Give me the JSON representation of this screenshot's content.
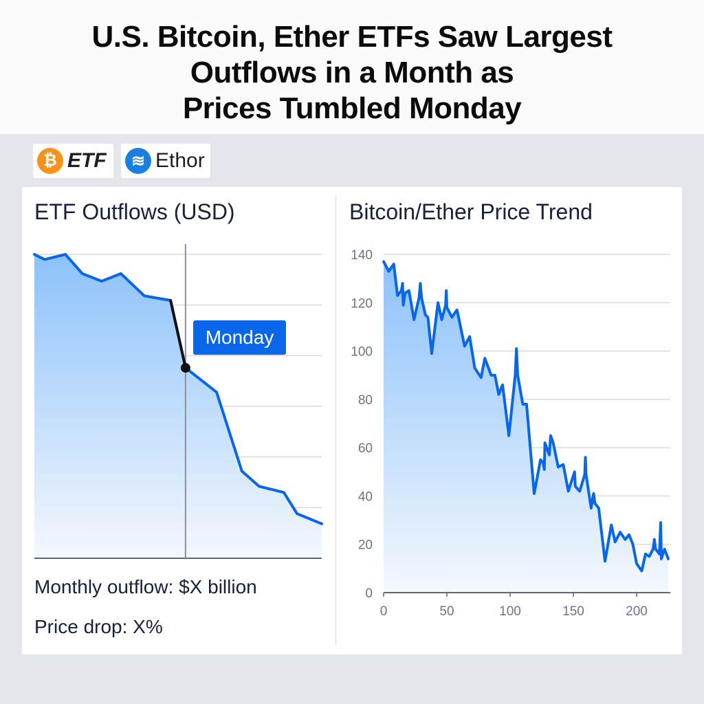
{
  "header": {
    "title_lines": [
      "U.S. Bitcoin, Ether ETFs Saw Largest",
      "Outflows in a Month as",
      "Prices Tumbled Monday"
    ]
  },
  "logos": [
    {
      "icon": "bitcoin-icon",
      "glyph": "₿",
      "label": "ETF",
      "color": "#f7931a"
    },
    {
      "icon": "ether-layers-icon",
      "glyph": "≋",
      "label": "Ethor",
      "color": "#1a7fe0"
    }
  ],
  "stats": {
    "monthly_outflow": "Monthly outflow: $X billion",
    "price_drop": "Price drop: X%"
  },
  "colors": {
    "line": "#0a66e8",
    "fill_top": "#8cc2fb",
    "highlight": "#111111",
    "label_bg": "#0a66e8"
  },
  "chart_data": [
    {
      "type": "area",
      "title": "ETF Outflows (USD)",
      "xlabel": "",
      "ylabel": "",
      "xlim": [
        0,
        100
      ],
      "ylim": [
        0,
        6
      ],
      "grid": true,
      "annotation": {
        "label": "Monday",
        "x": 52.6
      },
      "highlight_segment": [
        47.4,
        52.6
      ],
      "x": [
        0,
        3.6,
        10.8,
        16.7,
        23.4,
        30.1,
        38.3,
        47.4,
        52.6,
        63.4,
        72.2,
        78.2,
        86.8,
        91.4,
        100
      ],
      "values": [
        6.0,
        5.9,
        6.0,
        5.62,
        5.47,
        5.62,
        5.18,
        5.09,
        3.76,
        3.28,
        1.72,
        1.42,
        1.3,
        0.88,
        0.68
      ]
    },
    {
      "type": "area",
      "title": "Bitcoin/Ether Price Trend",
      "xlabel": "",
      "ylabel": "",
      "xlim": [
        0,
        225
      ],
      "ylim": [
        0,
        140
      ],
      "grid": true,
      "xticks": [
        0,
        50,
        100,
        150,
        200
      ],
      "yticks": [
        0,
        20,
        40,
        60,
        80,
        100,
        120,
        140
      ],
      "x": [
        0,
        4,
        8,
        11,
        14,
        15,
        15.5,
        17,
        20,
        24,
        28,
        29,
        30,
        33,
        35,
        38,
        43,
        46,
        49,
        49.5,
        50,
        54,
        58,
        64,
        68,
        72,
        77,
        80,
        85,
        88,
        91,
        94,
        99,
        104,
        105,
        106,
        110,
        113,
        119,
        124,
        126,
        127,
        127.5,
        131,
        132,
        134,
        138,
        142,
        146,
        151,
        151.5,
        155,
        159,
        159.5,
        160,
        164,
        166,
        167,
        170,
        175,
        180,
        183,
        187,
        191,
        194,
        197,
        200,
        204,
        207,
        210,
        213,
        214,
        215,
        218,
        219,
        219.5,
        222,
        225
      ],
      "values": [
        137,
        133,
        136,
        123,
        125,
        128,
        119,
        124,
        125,
        113,
        122,
        128,
        122,
        115,
        114,
        99,
        120,
        113,
        119,
        125,
        118,
        114,
        117,
        102,
        106,
        93,
        89,
        97,
        90,
        90,
        82,
        86,
        65,
        90,
        101,
        90,
        78,
        78,
        41,
        55,
        54,
        51,
        62,
        57,
        65,
        62,
        52,
        53,
        42,
        50,
        44,
        42,
        49,
        56,
        49,
        35,
        41,
        37,
        35,
        13,
        28,
        21,
        25,
        22,
        24,
        20,
        12,
        9,
        16,
        15,
        18,
        22,
        18,
        16,
        29,
        14,
        18,
        14
      ]
    }
  ]
}
